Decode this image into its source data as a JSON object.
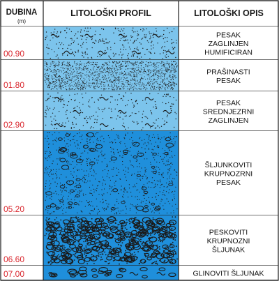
{
  "header": {
    "depth_title": "DUBINA",
    "depth_unit": "(m)",
    "profile_title": "LITOLOŠKI PROFIL",
    "description_title": "LITOLOŠKI OPIS"
  },
  "colors": {
    "light_blue": "#7cc4ec",
    "medium_blue": "#1f8fdb",
    "depth_red": "#d9272e",
    "border": "#1a1a1a"
  },
  "layers": [
    {
      "depth_label": "00.90",
      "description": [
        "PESAK",
        "ZAGLINJEN",
        "HUMIFICIRAN"
      ],
      "pattern": "sand-clayey",
      "fill": "light_blue"
    },
    {
      "depth_label": "01.80",
      "description": [
        "PRAŠINASTI",
        "PESAK"
      ],
      "pattern": "silty-sand",
      "fill": "light_blue"
    },
    {
      "depth_label": "02.90",
      "description": [
        "PESAK",
        "SREDNJEZRNI",
        "ZAGLINJEN"
      ],
      "pattern": "sand-clayey-sparse",
      "fill": "light_blue"
    },
    {
      "depth_label": "05.20",
      "description": [
        "ŠLJUNKOVITI",
        "KRUPNOZRNI",
        "PESAK"
      ],
      "pattern": "gravelly-sand",
      "fill": "medium_blue"
    },
    {
      "depth_label": "06.60",
      "description": [
        "PESKOVITI",
        "KRUPNOZNI",
        "ŠLJUNAK"
      ],
      "pattern": "sandy-gravel",
      "fill": "medium_blue"
    },
    {
      "depth_label": "07.00",
      "description": [
        "GLINOVITI ŠLJUNAK"
      ],
      "pattern": "clayey-gravel",
      "fill": "medium_blue"
    }
  ]
}
